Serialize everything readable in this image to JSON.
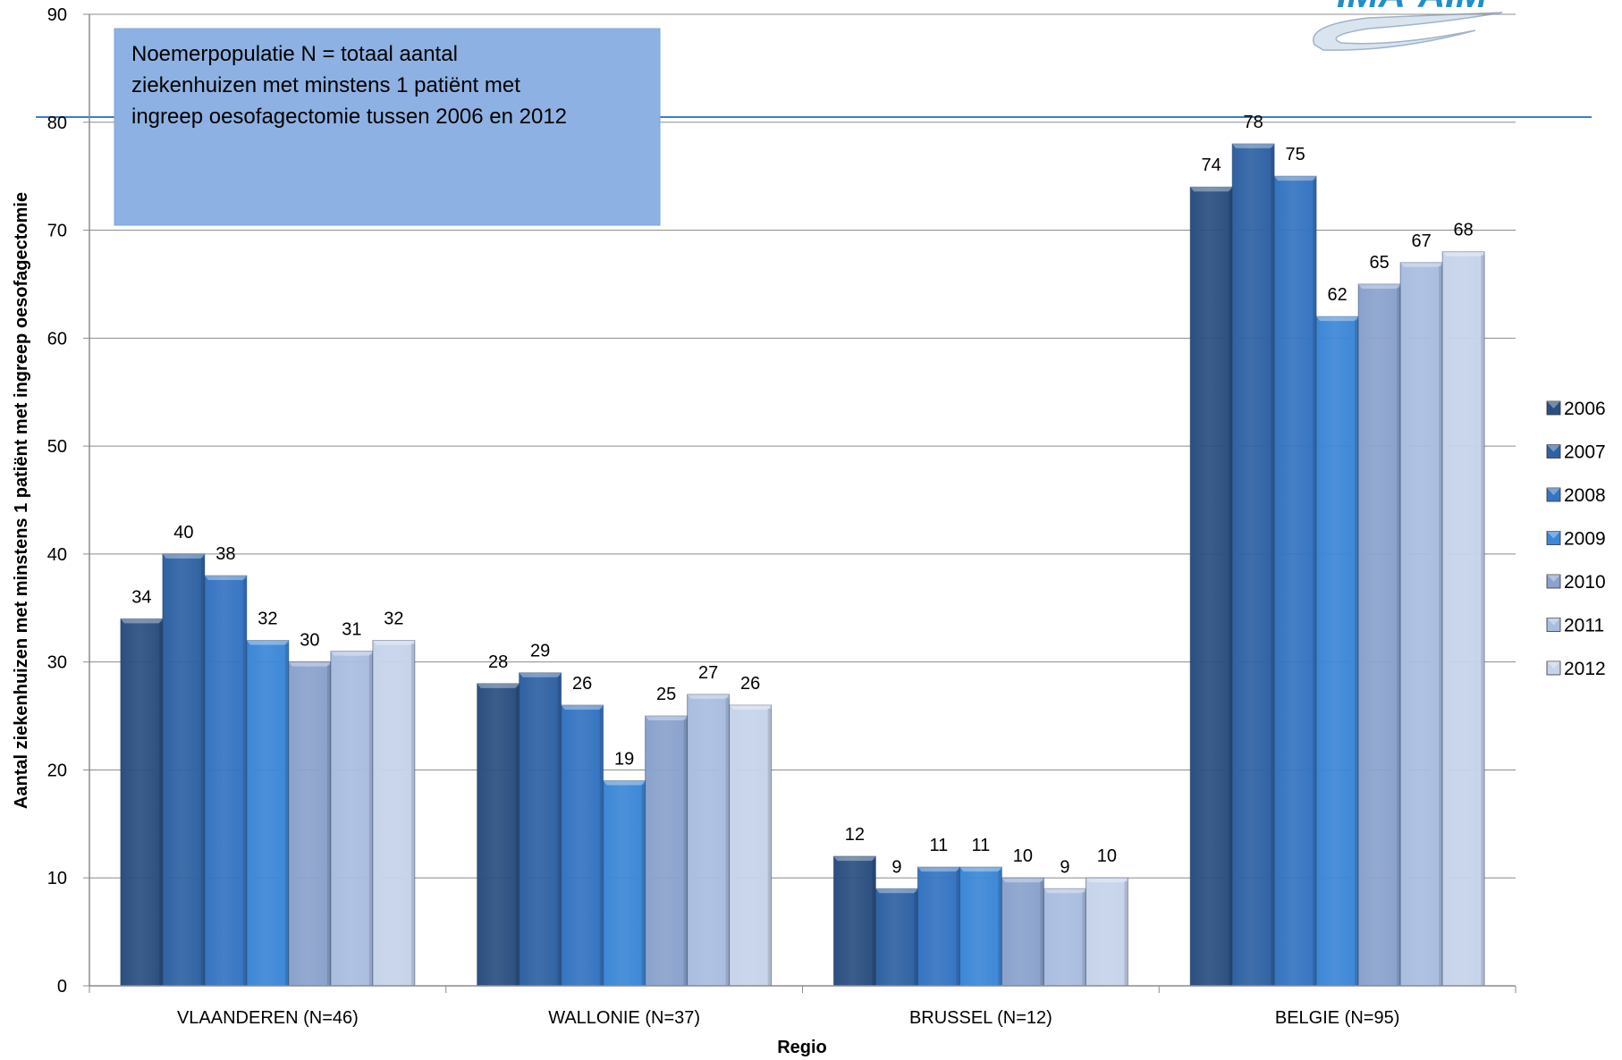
{
  "chart_data": {
    "type": "bar",
    "title": "",
    "xlabel": "Regio",
    "ylabel": "Aantal ziekenhuizen met minstens 1 patiënt met ingreep oesofagectomie",
    "ylim": [
      0,
      90
    ],
    "yticks": [
      0,
      10,
      20,
      30,
      40,
      50,
      60,
      70,
      80,
      90
    ],
    "grid": true,
    "legend_position": "right",
    "categories": [
      "VLAANDEREN (N=46)",
      "WALLONIE (N=37)",
      "BRUSSEL (N=12)",
      "BELGIE (N=95)"
    ],
    "series": [
      {
        "name": "2006",
        "color": "#2b4f80",
        "values": [
          34,
          28,
          12,
          74
        ]
      },
      {
        "name": "2007",
        "color": "#2f62a3",
        "values": [
          40,
          29,
          9,
          78
        ]
      },
      {
        "name": "2008",
        "color": "#3574c1",
        "values": [
          38,
          26,
          11,
          75
        ]
      },
      {
        "name": "2009",
        "color": "#3c87d6",
        "values": [
          32,
          19,
          11,
          62
        ]
      },
      {
        "name": "2010",
        "color": "#8aa2cc",
        "values": [
          30,
          25,
          10,
          65
        ]
      },
      {
        "name": "2011",
        "color": "#a9bde0",
        "values": [
          31,
          27,
          9,
          67
        ]
      },
      {
        "name": "2012",
        "color": "#c6d3ea",
        "values": [
          32,
          26,
          10,
          68
        ]
      }
    ],
    "annotation": {
      "lines": [
        "Noemerpopulatie N = totaal aantal",
        "ziekenhuizen met minstens 1 patiënt met",
        "ingreep oesofagectomie tussen 2006 en 2012"
      ],
      "color": "#8db1e2"
    }
  },
  "logo": {
    "text": "IMA-AIM",
    "color": "#1f8fc6"
  }
}
